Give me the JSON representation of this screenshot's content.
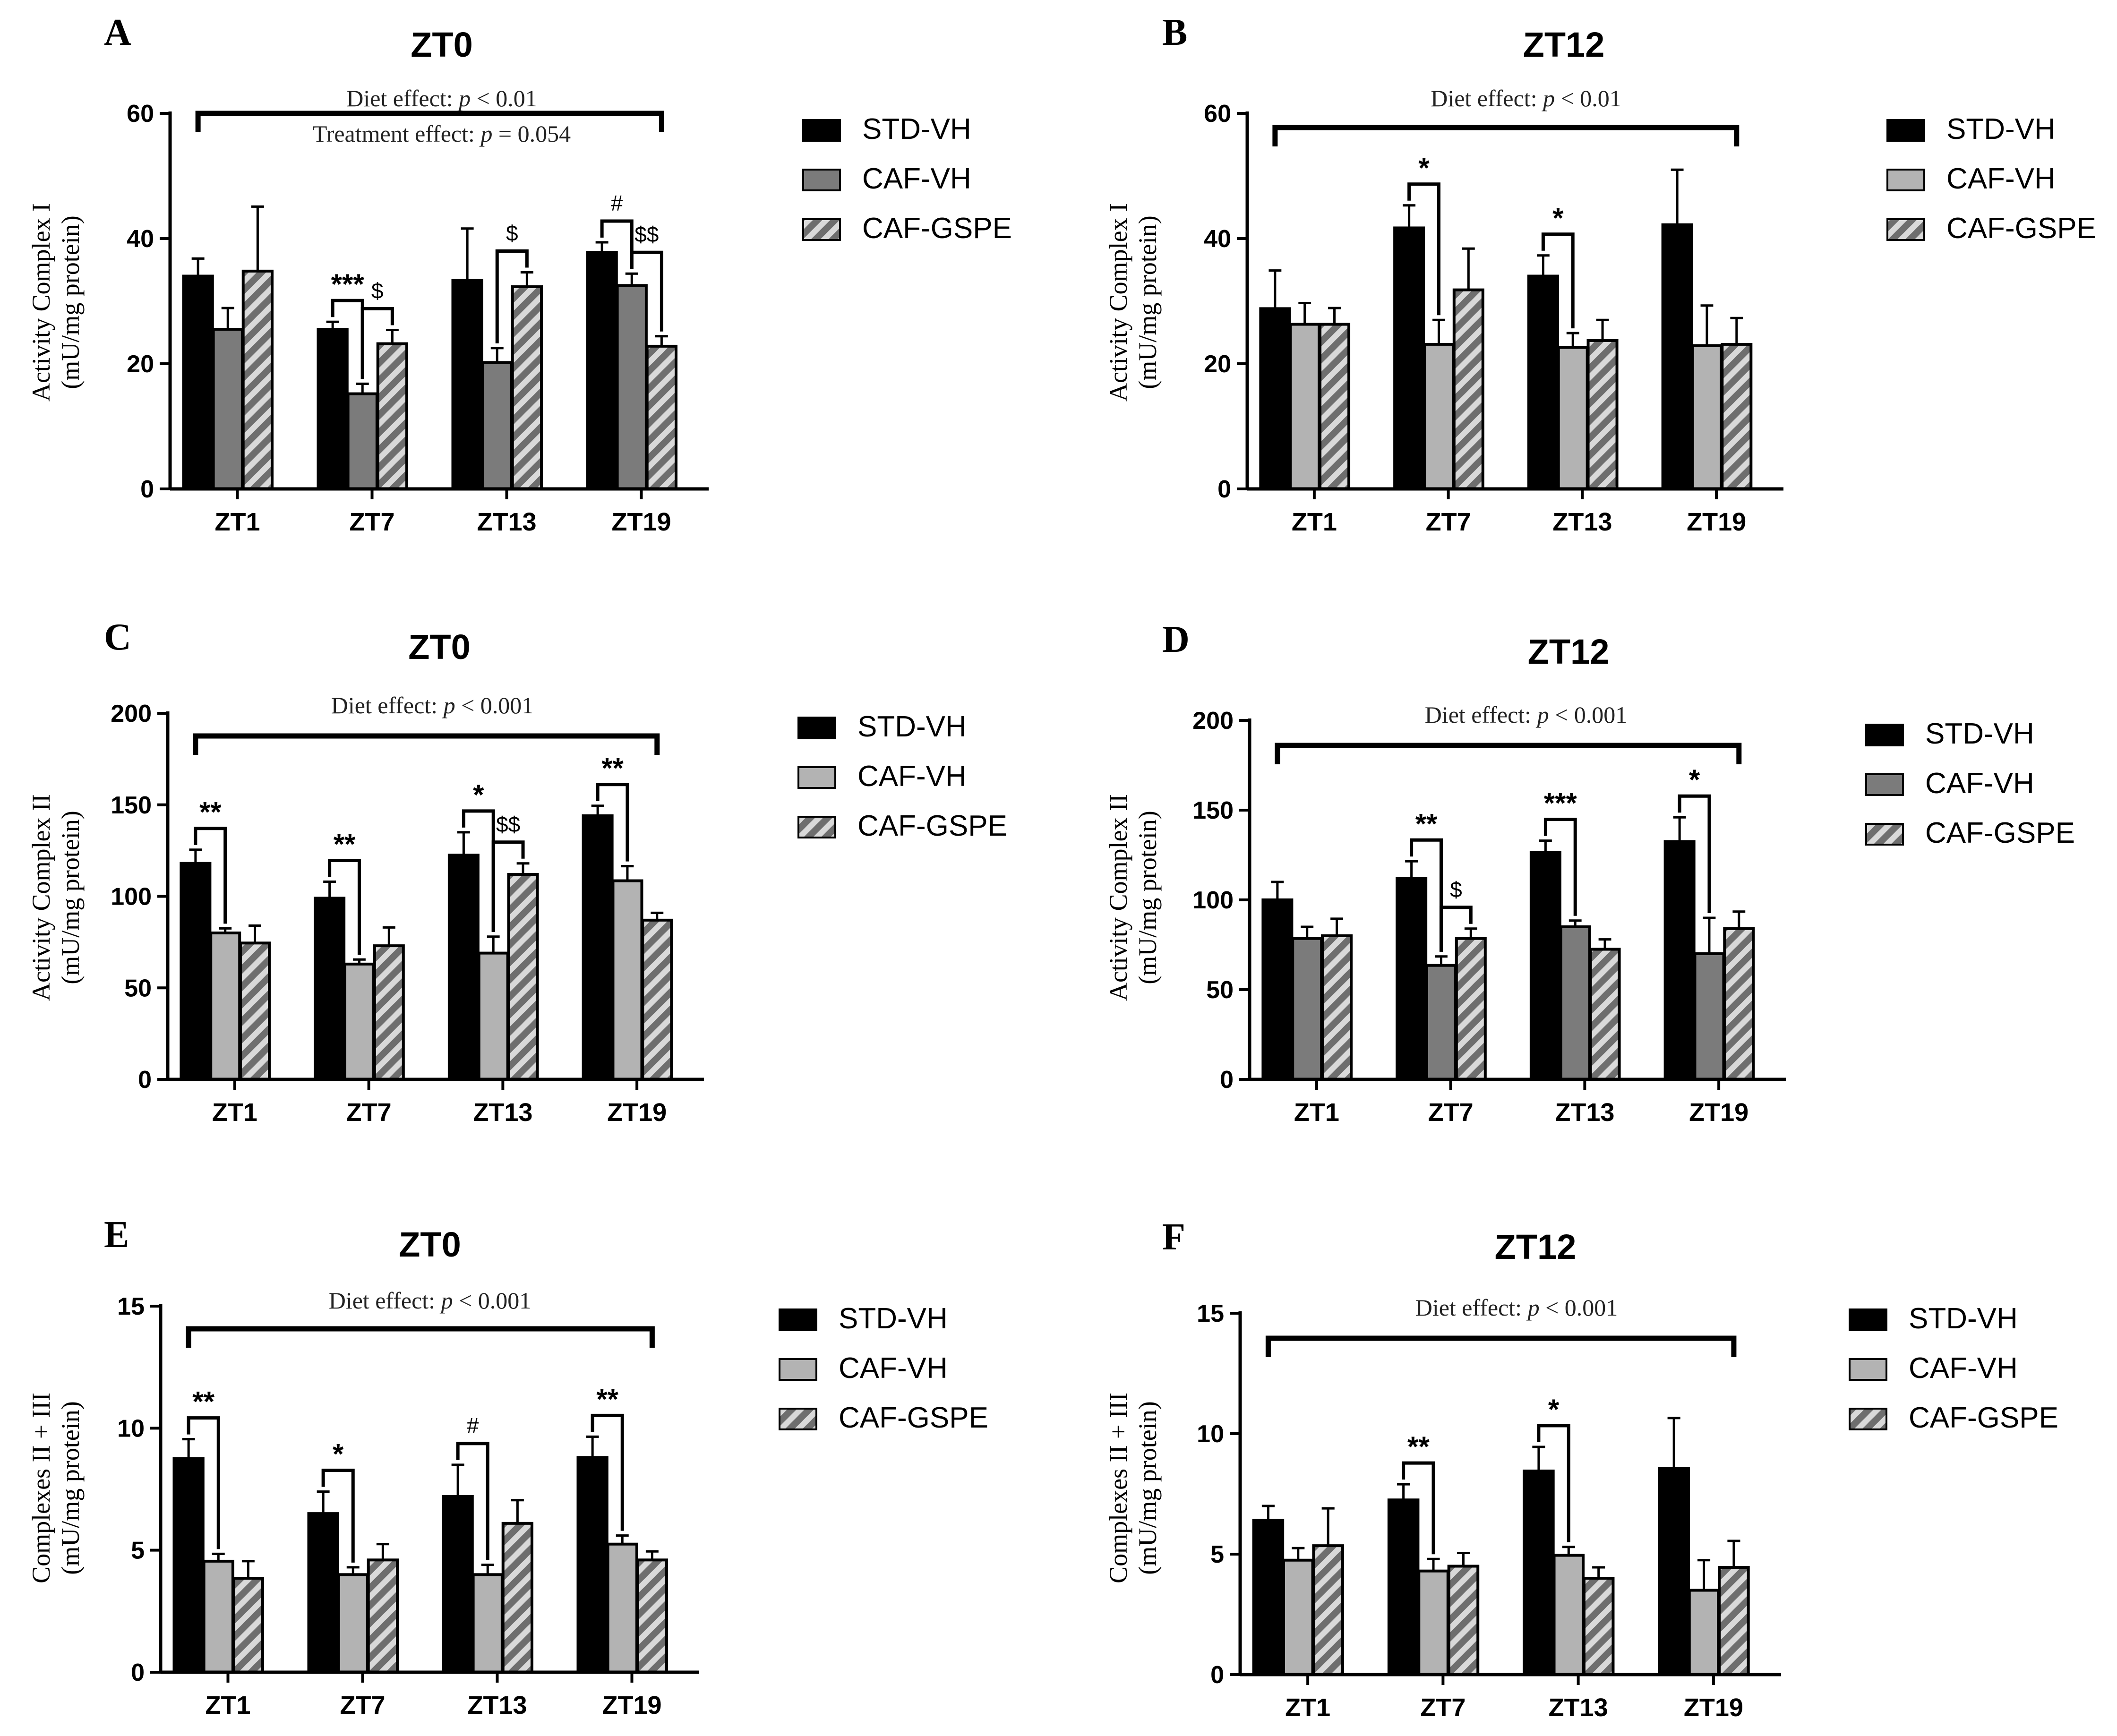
{
  "figure": {
    "groups": [
      "STD-VH",
      "CAF-VH",
      "CAF-GSPE"
    ],
    "categories": [
      "ZT1",
      "ZT7",
      "ZT13",
      "ZT19"
    ]
  },
  "chart_data": [
    {
      "panel": "A",
      "type": "bar",
      "title": "ZT0",
      "ylabel": [
        "Activity Complex I",
        "(mU/mg protein)"
      ],
      "ylim": [
        0,
        60
      ],
      "yticks": [
        0,
        20,
        40,
        60
      ],
      "categories": [
        "ZT1",
        "ZT7",
        "ZT13",
        "ZT19"
      ],
      "annotations": [
        {
          "prefix": "Diet effect: ",
          "italic": "p",
          "suffix": " < 0.01"
        },
        {
          "prefix": "Treatment effect: ",
          "italic": "p",
          "suffix": " = 0.054"
        }
      ],
      "legend": [
        "STD-VH",
        "CAF-VH",
        "CAF-GSPE"
      ],
      "caf_color": "#7b7b7b",
      "series": [
        {
          "name": "STD-VH",
          "values": [
            34,
            25.5,
            33.3,
            37.8
          ],
          "errors": [
            2.8,
            1.2,
            8.3,
            1.6
          ]
        },
        {
          "name": "CAF-VH",
          "values": [
            25.5,
            15.2,
            20.2,
            32.5
          ],
          "errors": [
            3.4,
            1.6,
            2.3,
            1.9
          ]
        },
        {
          "name": "CAF-GSPE",
          "values": [
            34.8,
            23.2,
            32.3,
            22.8
          ],
          "errors": [
            10.3,
            2.2,
            2.3,
            1.6
          ]
        }
      ],
      "significance": [
        {
          "cat": 1,
          "from": 0,
          "to": 1,
          "label": "***"
        },
        {
          "cat": 1,
          "from": 1,
          "to": 2,
          "label": "$"
        },
        {
          "cat": 2,
          "from": 1,
          "to": 2,
          "label": "$"
        },
        {
          "cat": 3,
          "from": 0,
          "to": 1,
          "label": "#"
        },
        {
          "cat": 3,
          "from": 1,
          "to": 2,
          "label": "$$"
        }
      ]
    },
    {
      "panel": "B",
      "type": "bar",
      "title": "ZT12",
      "ylabel": [
        "Activity Complex I",
        "(mU/mg protein)"
      ],
      "ylim": [
        0,
        60
      ],
      "yticks": [
        0,
        20,
        40,
        60
      ],
      "categories": [
        "ZT1",
        "ZT7",
        "ZT13",
        "ZT19"
      ],
      "annotations": [
        {
          "prefix": "Diet effect: ",
          "italic": "p",
          "suffix": " < 0.01"
        }
      ],
      "legend": [
        "STD-VH",
        "CAF-VH",
        "CAF-GSPE"
      ],
      "caf_color": "#b3b3b3",
      "series": [
        {
          "name": "STD-VH",
          "values": [
            28.8,
            41.7,
            34,
            42.2
          ],
          "errors": [
            6.1,
            3.6,
            3.3,
            8.8
          ]
        },
        {
          "name": "CAF-VH",
          "values": [
            26.3,
            23.1,
            22.6,
            22.9
          ],
          "errors": [
            3.4,
            3.9,
            2.3,
            6.4
          ]
        },
        {
          "name": "CAF-GSPE",
          "values": [
            26.3,
            31.8,
            23.7,
            23.1
          ],
          "errors": [
            2.6,
            6.6,
            3.3,
            4.2
          ]
        }
      ],
      "significance": [
        {
          "cat": 1,
          "from": 0,
          "to": 1,
          "label": "*"
        },
        {
          "cat": 2,
          "from": 0,
          "to": 1,
          "label": "*"
        }
      ]
    },
    {
      "panel": "C",
      "type": "bar",
      "title": "ZT0",
      "ylabel": [
        "Activity Complex II",
        "(mU/mg protein)"
      ],
      "ylim": [
        0,
        200
      ],
      "yticks": [
        0,
        50,
        100,
        150,
        200
      ],
      "categories": [
        "ZT1",
        "ZT7",
        "ZT13",
        "ZT19"
      ],
      "annotations": [
        {
          "prefix": "Diet effect: ",
          "italic": "p",
          "suffix": " < 0.001"
        }
      ],
      "legend": [
        "STD-VH",
        "CAF-VH",
        "CAF-GSPE"
      ],
      "caf_color": "#b3b3b3",
      "series": [
        {
          "name": "STD-VH",
          "values": [
            118,
            99,
            122.5,
            144
          ],
          "errors": [
            7.5,
            9,
            12.5,
            5.5
          ]
        },
        {
          "name": "CAF-VH",
          "values": [
            80,
            63,
            69,
            108.5
          ],
          "errors": [
            2.5,
            2.5,
            9,
            8
          ]
        },
        {
          "name": "CAF-GSPE",
          "values": [
            74.5,
            73,
            112,
            87
          ],
          "errors": [
            9.5,
            10,
            6,
            4
          ]
        }
      ],
      "significance": [
        {
          "cat": 0,
          "from": 0,
          "to": 1,
          "label": "**"
        },
        {
          "cat": 1,
          "from": 0,
          "to": 1,
          "label": "**"
        },
        {
          "cat": 2,
          "from": 0,
          "to": 1,
          "label": "*"
        },
        {
          "cat": 2,
          "from": 1,
          "to": 2,
          "label": "$$"
        },
        {
          "cat": 3,
          "from": 0,
          "to": 1,
          "label": "**"
        }
      ]
    },
    {
      "panel": "D",
      "type": "bar",
      "title": "ZT12",
      "ylabel": [
        "Activity Complex II",
        "(mU/mg protein)"
      ],
      "ylim": [
        0,
        200
      ],
      "yticks": [
        0,
        50,
        100,
        150,
        200
      ],
      "categories": [
        "ZT1",
        "ZT7",
        "ZT13",
        "ZT19"
      ],
      "annotations": [
        {
          "prefix": "Diet effect: ",
          "italic": "p",
          "suffix": " < 0.001"
        }
      ],
      "legend": [
        "STD-VH",
        "CAF-VH",
        "CAF-GSPE"
      ],
      "caf_color": "#7b7b7b",
      "series": [
        {
          "name": "STD-VH",
          "values": [
            100,
            112,
            126.5,
            132.5
          ],
          "errors": [
            10,
            9.5,
            6.5,
            13.5
          ]
        },
        {
          "name": "CAF-VH",
          "values": [
            78.5,
            63.5,
            85,
            70
          ],
          "errors": [
            6.5,
            5,
            3.5,
            20
          ]
        },
        {
          "name": "CAF-GSPE",
          "values": [
            80,
            78.5,
            72.5,
            84
          ],
          "errors": [
            9.5,
            5.5,
            5.5,
            9.5
          ]
        }
      ],
      "significance": [
        {
          "cat": 1,
          "from": 0,
          "to": 1,
          "label": "**"
        },
        {
          "cat": 1,
          "from": 1,
          "to": 2,
          "label": "$"
        },
        {
          "cat": 2,
          "from": 0,
          "to": 1,
          "label": "***"
        },
        {
          "cat": 3,
          "from": 0,
          "to": 1,
          "label": "*"
        }
      ]
    },
    {
      "panel": "E",
      "type": "bar",
      "title": "ZT0",
      "ylabel": [
        "Complexes II + III",
        "(mU/mg protein)"
      ],
      "ylim": [
        0,
        15
      ],
      "yticks": [
        0,
        5,
        10,
        15
      ],
      "categories": [
        "ZT1",
        "ZT7",
        "ZT13",
        "ZT19"
      ],
      "annotations": [
        {
          "prefix": "Diet effect: ",
          "italic": "p",
          "suffix": " < 0.001"
        }
      ],
      "legend": [
        "STD-VH",
        "CAF-VH",
        "CAF-GSPE"
      ],
      "caf_color": "#b3b3b3",
      "series": [
        {
          "name": "STD-VH",
          "values": [
            8.75,
            6.5,
            7.2,
            8.8
          ],
          "errors": [
            0.8,
            0.9,
            1.3,
            0.85
          ]
        },
        {
          "name": "CAF-VH",
          "values": [
            4.55,
            4.0,
            4.0,
            5.25
          ],
          "errors": [
            0.3,
            0.3,
            0.4,
            0.35
          ]
        },
        {
          "name": "CAF-GSPE",
          "values": [
            3.85,
            4.6,
            6.1,
            4.6
          ],
          "errors": [
            0.7,
            0.65,
            0.95,
            0.35
          ]
        }
      ],
      "significance": [
        {
          "cat": 0,
          "from": 0,
          "to": 1,
          "label": "**"
        },
        {
          "cat": 1,
          "from": 0,
          "to": 1,
          "label": "*"
        },
        {
          "cat": 2,
          "from": 0,
          "to": 1,
          "label": "#"
        },
        {
          "cat": 3,
          "from": 0,
          "to": 1,
          "label": "**"
        }
      ]
    },
    {
      "panel": "F",
      "type": "bar",
      "title": "ZT12",
      "ylabel": [
        "Complexes II + III",
        "(mU/mg protein)"
      ],
      "ylim": [
        0,
        15
      ],
      "yticks": [
        0,
        5,
        10,
        15
      ],
      "categories": [
        "ZT1",
        "ZT7",
        "ZT13",
        "ZT19"
      ],
      "annotations": [
        {
          "prefix": "Diet effect: ",
          "italic": "p",
          "suffix": " < 0.001"
        }
      ],
      "legend": [
        "STD-VH",
        "CAF-VH",
        "CAF-GSPE"
      ],
      "caf_color": "#b3b3b3",
      "series": [
        {
          "name": "STD-VH",
          "values": [
            6.4,
            7.25,
            8.45,
            8.55
          ],
          "errors": [
            0.6,
            0.65,
            1.0,
            2.1
          ]
        },
        {
          "name": "CAF-VH",
          "values": [
            4.75,
            4.3,
            4.95,
            3.5
          ],
          "errors": [
            0.5,
            0.5,
            0.35,
            1.25
          ]
        },
        {
          "name": "CAF-GSPE",
          "values": [
            5.35,
            4.5,
            4.0,
            4.45
          ],
          "errors": [
            1.55,
            0.55,
            0.45,
            1.1
          ]
        }
      ],
      "significance": [
        {
          "cat": 1,
          "from": 0,
          "to": 1,
          "label": "**"
        },
        {
          "cat": 2,
          "from": 0,
          "to": 1,
          "label": "*"
        }
      ]
    }
  ]
}
